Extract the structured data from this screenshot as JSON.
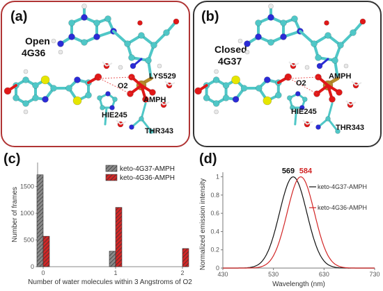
{
  "panels": {
    "a": {
      "label": "(a)",
      "state": "Open",
      "pdb": "4G36",
      "residues": [
        "LYS529",
        "O2",
        "AMPH",
        "HIE245",
        "THR343"
      ]
    },
    "b": {
      "label": "(b)",
      "state": "Closed",
      "pdb": "4G37",
      "residues": [
        "AMPH",
        "O2",
        "HIE245",
        "THR343"
      ]
    },
    "c": {
      "label": "(c)"
    },
    "d": {
      "label": "(d)"
    }
  },
  "colors": {
    "carbon": "#4fc7c7",
    "nitrogen": "#2b2bd6",
    "oxygen": "#e01818",
    "sulfur": "#e6e600",
    "hydrogen": "#e8e8e8",
    "phosphorus": "#b58a2a",
    "red_series": "#d22626",
    "black_series": "#111111"
  },
  "chart_data": [
    {
      "type": "bar",
      "panel": "c",
      "xlabel": "Number of water molecules within 3 Angstroms of O2",
      "ylabel": "Number of frames",
      "categories": [
        0,
        1,
        2
      ],
      "x_ticks": [
        "0",
        "1",
        "2"
      ],
      "y_ticks": [
        "0",
        "500",
        "1000",
        "1500"
      ],
      "ylim": [
        0,
        1950
      ],
      "legend_position": "top-right",
      "series": [
        {
          "name": "keto-4G37-AMPH",
          "values": [
            1720,
            290,
            0
          ],
          "color": "#8a8a8a",
          "pattern": "hatched"
        },
        {
          "name": "keto-4G36-AMPH",
          "values": [
            570,
            1110,
            340
          ],
          "color": "#d22626",
          "pattern": "hatched"
        }
      ]
    },
    {
      "type": "line",
      "panel": "d",
      "xlabel": "Wavelength (nm)",
      "ylabel": "Normalized emission intensity",
      "x_ticks": [
        "430",
        "530",
        "630",
        "730"
      ],
      "y_ticks": [
        "0",
        "0.2",
        "0.4",
        "0.6",
        "0.8",
        "1"
      ],
      "xlim": [
        430,
        730
      ],
      "ylim": [
        0,
        1.05
      ],
      "legend_position": "right",
      "series": [
        {
          "name": "keto-4G37-AMPH",
          "peak": 569,
          "peak_label": "569",
          "sigma": 27,
          "color": "#111111"
        },
        {
          "name": "keto-4G36-AMPH",
          "peak": 584,
          "peak_label": "584",
          "sigma": 27,
          "color": "#d22626"
        }
      ]
    }
  ]
}
